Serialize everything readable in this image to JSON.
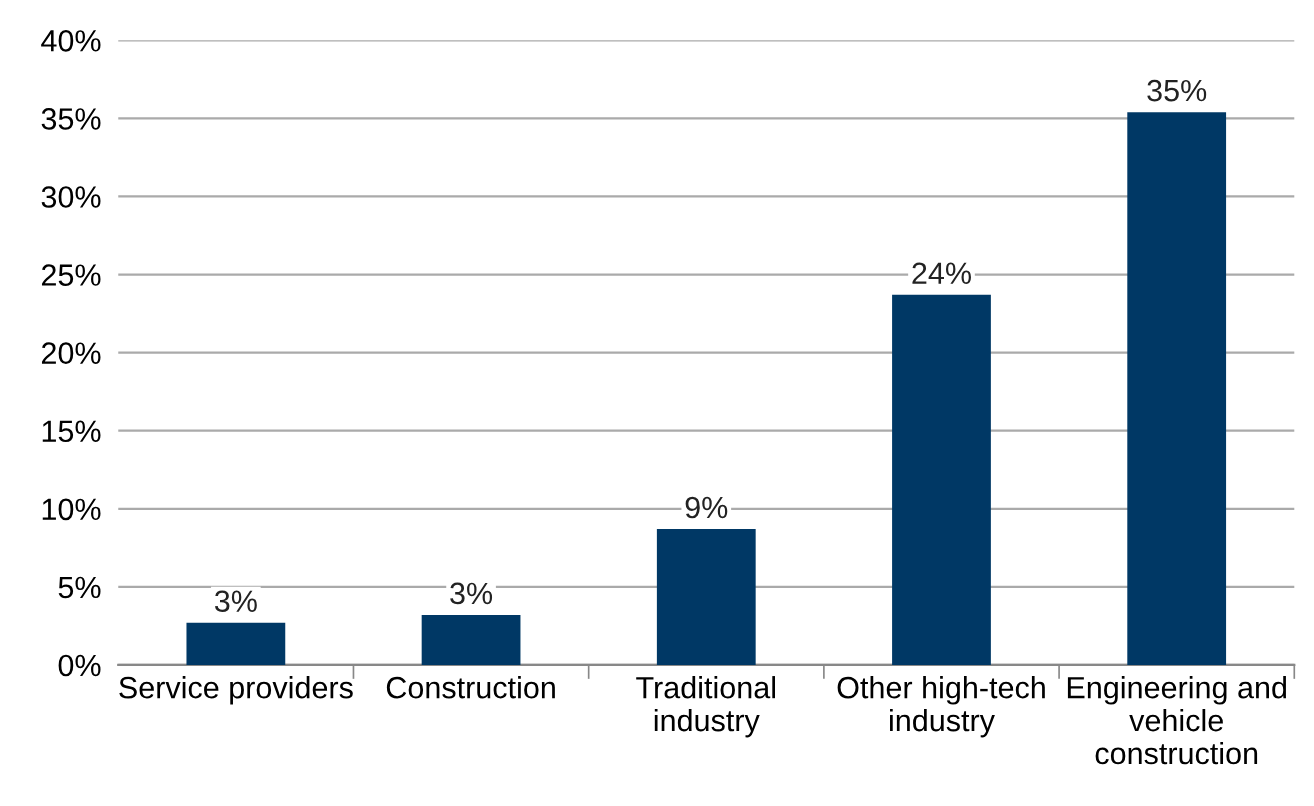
{
  "chart_data": {
    "type": "bar",
    "categories": [
      "Service providers",
      "Construction",
      "Traditional\nindustry",
      "Other high-tech\nindustry",
      "Engineering and\nvehicle\nconstruction"
    ],
    "values": [
      2.7,
      3.2,
      8.7,
      23.7,
      35.4
    ],
    "value_labels": [
      "3%",
      "3%",
      "9%",
      "24%",
      "35%"
    ],
    "color": "#003865",
    "ylim": [
      0,
      40
    ],
    "yticks": [
      {
        "value": 0,
        "label": "0%"
      },
      {
        "value": 5,
        "label": "5%"
      },
      {
        "value": 10,
        "label": "10%"
      },
      {
        "value": 15,
        "label": "15%"
      },
      {
        "value": 20,
        "label": "20%"
      },
      {
        "value": 25,
        "label": "25%"
      },
      {
        "value": 30,
        "label": "30%"
      },
      {
        "value": 35,
        "label": "35%"
      },
      {
        "value": 40,
        "label": "40%"
      }
    ],
    "grid": "y"
  }
}
